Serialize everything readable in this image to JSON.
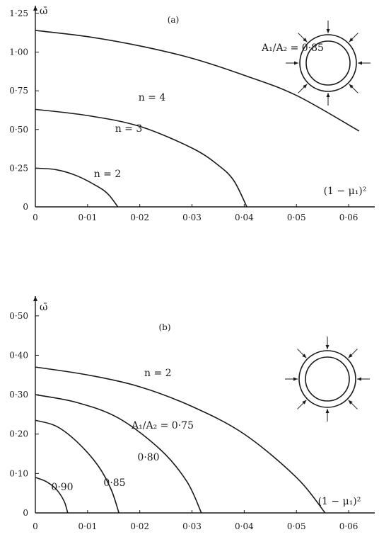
{
  "chart_data": [
    {
      "panel": "(a)",
      "type": "line",
      "ylabel": "ω̄",
      "xlabel": "(1 − μ₁)²",
      "xlim": [
        0,
        0.065
      ],
      "ylim": [
        0,
        1.3
      ],
      "xticks": [
        {
          "v": 0,
          "label": "0"
        },
        {
          "v": 0.01,
          "label": "0·01"
        },
        {
          "v": 0.02,
          "label": "0·02"
        },
        {
          "v": 0.03,
          "label": "0·03"
        },
        {
          "v": 0.04,
          "label": "0·04"
        },
        {
          "v": 0.05,
          "label": "0·05"
        },
        {
          "v": 0.06,
          "label": "0·06"
        }
      ],
      "yticks": [
        {
          "v": 0,
          "label": "0"
        },
        {
          "v": 0.25,
          "label": "0·25"
        },
        {
          "v": 0.5,
          "label": "0·50"
        },
        {
          "v": 0.75,
          "label": "0·75"
        },
        {
          "v": 1.0,
          "label": "1·00"
        },
        {
          "v": 1.25,
          "label": "1·25"
        }
      ],
      "annotations": [
        "(a)",
        "A₁/A₂ = 0·85"
      ],
      "series": [
        {
          "name": "n = 4",
          "x": [
            0,
            0.01,
            0.02,
            0.03,
            0.04,
            0.05,
            0.062
          ],
          "y": [
            1.14,
            1.1,
            1.04,
            0.96,
            0.85,
            0.72,
            0.49
          ]
        },
        {
          "name": "n = 3",
          "x": [
            0,
            0.01,
            0.02,
            0.03,
            0.035,
            0.038,
            0.0405
          ],
          "y": [
            0.63,
            0.59,
            0.52,
            0.38,
            0.27,
            0.17,
            0.0
          ]
        },
        {
          "name": "n = 2",
          "x": [
            0,
            0.004,
            0.008,
            0.012,
            0.014,
            0.0158
          ],
          "y": [
            0.25,
            0.24,
            0.2,
            0.13,
            0.08,
            0.0
          ]
        }
      ]
    },
    {
      "panel": "(b)",
      "type": "line",
      "ylabel": "ω̄",
      "xlabel": "(1 − μ₁)²",
      "xlim": [
        0,
        0.065
      ],
      "ylim": [
        0,
        0.55
      ],
      "xticks": [
        {
          "v": 0,
          "label": "0"
        },
        {
          "v": 0.01,
          "label": "0·01"
        },
        {
          "v": 0.02,
          "label": "0·02"
        },
        {
          "v": 0.03,
          "label": "0·03"
        },
        {
          "v": 0.04,
          "label": "0·04"
        },
        {
          "v": 0.05,
          "label": "0·05"
        },
        {
          "v": 0.06,
          "label": "0·06"
        }
      ],
      "yticks": [
        {
          "v": 0,
          "label": "0"
        },
        {
          "v": 0.1,
          "label": "0·10"
        },
        {
          "v": 0.2,
          "label": "0·20"
        },
        {
          "v": 0.3,
          "label": "0·30"
        },
        {
          "v": 0.4,
          "label": "0·40"
        },
        {
          "v": 0.5,
          "label": "0·50"
        }
      ],
      "annotations": [
        "(b)",
        "n = 2"
      ],
      "series": [
        {
          "name": "A₁/A₂ = 0·75",
          "x": [
            0,
            0.01,
            0.02,
            0.03,
            0.04,
            0.05,
            0.0555
          ],
          "y": [
            0.37,
            0.35,
            0.32,
            0.27,
            0.2,
            0.09,
            0.0
          ]
        },
        {
          "name": "0·80",
          "x": [
            0,
            0.008,
            0.016,
            0.024,
            0.029,
            0.0318
          ],
          "y": [
            0.3,
            0.28,
            0.24,
            0.16,
            0.08,
            0.0
          ]
        },
        {
          "name": "0·85",
          "x": [
            0,
            0.004,
            0.008,
            0.012,
            0.0145,
            0.016
          ],
          "y": [
            0.235,
            0.22,
            0.18,
            0.12,
            0.06,
            0.0
          ]
        },
        {
          "name": "0·90",
          "x": [
            0,
            0.002,
            0.004,
            0.0055,
            0.0062
          ],
          "y": [
            0.09,
            0.08,
            0.06,
            0.03,
            0.0
          ]
        }
      ]
    }
  ]
}
